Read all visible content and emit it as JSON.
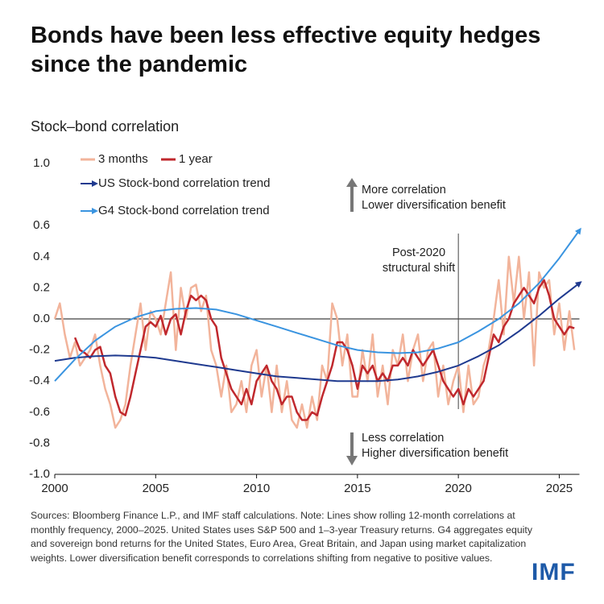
{
  "chart_data": {
    "type": "line",
    "title": "Bonds have been less effective equity hedges since the pandemic",
    "subtitle": "Stock–bond correlation",
    "xlim": [
      2000,
      2026
    ],
    "xticks": [
      2000,
      2005,
      2010,
      2015,
      2020,
      2025
    ],
    "ylim": [
      -1,
      1
    ],
    "yticks": [
      {
        "value": 1,
        "label": "1.0"
      },
      {
        "value": 0.6,
        "label": "0.6"
      },
      {
        "value": 0.4,
        "label": "0.4"
      },
      {
        "value": 0.2,
        "label": "0.2"
      },
      {
        "value": 0,
        "label": "0.0"
      },
      {
        "value": -0.2,
        "label": "-0.2"
      },
      {
        "value": -0.4,
        "label": "-0.4"
      },
      {
        "value": -0.6,
        "label": "-0.6"
      },
      {
        "value": -0.8,
        "label": "-0.8"
      },
      {
        "value": -1,
        "label": "-1.0"
      }
    ],
    "vline": 2020,
    "annotations": [
      {
        "lines": [
          "More correlation",
          "Lower diversification benefit"
        ]
      },
      {
        "lines": [
          "Less correlation",
          "Higher diversification benefit"
        ]
      },
      {
        "lines": [
          "Post-2020",
          "structural shift"
        ]
      }
    ],
    "x": [
      2000,
      2000.25,
      2000.5,
      2000.75,
      2001,
      2001.25,
      2001.5,
      2001.75,
      2002,
      2002.25,
      2002.5,
      2002.75,
      2003,
      2003.25,
      2003.5,
      2003.75,
      2004,
      2004.25,
      2004.5,
      2004.75,
      2005,
      2005.25,
      2005.5,
      2005.75,
      2006,
      2006.25,
      2006.5,
      2006.75,
      2007,
      2007.25,
      2007.5,
      2007.75,
      2008,
      2008.25,
      2008.5,
      2008.75,
      2009,
      2009.25,
      2009.5,
      2009.75,
      2010,
      2010.25,
      2010.5,
      2010.75,
      2011,
      2011.25,
      2011.5,
      2011.75,
      2012,
      2012.25,
      2012.5,
      2012.75,
      2013,
      2013.25,
      2013.5,
      2013.75,
      2014,
      2014.25,
      2014.5,
      2014.75,
      2015,
      2015.25,
      2015.5,
      2015.75,
      2016,
      2016.25,
      2016.5,
      2016.75,
      2017,
      2017.25,
      2017.5,
      2017.75,
      2018,
      2018.25,
      2018.5,
      2018.75,
      2019,
      2019.25,
      2019.5,
      2019.75,
      2020,
      2020.25,
      2020.5,
      2020.75,
      2021,
      2021.25,
      2021.5,
      2021.75,
      2022,
      2022.25,
      2022.5,
      2022.75,
      2023,
      2023.25,
      2023.5,
      2023.75,
      2024,
      2024.25,
      2024.5,
      2024.75,
      2025,
      2025.25,
      2025.5,
      2025.75
    ],
    "series": [
      {
        "name": "3 months",
        "color": "#f2b49b",
        "width": 2.5,
        "values": [
          0.0,
          0.1,
          -0.1,
          -0.25,
          -0.15,
          -0.3,
          -0.25,
          -0.2,
          -0.1,
          -0.3,
          -0.45,
          -0.55,
          -0.7,
          -0.65,
          -0.55,
          -0.3,
          -0.1,
          0.1,
          -0.2,
          0.05,
          0.0,
          -0.1,
          0.1,
          0.3,
          -0.2,
          0.2,
          0.0,
          0.2,
          0.22,
          0.05,
          0.15,
          -0.2,
          -0.3,
          -0.5,
          -0.3,
          -0.6,
          -0.55,
          -0.4,
          -0.6,
          -0.3,
          -0.2,
          -0.5,
          -0.3,
          -0.6,
          -0.3,
          -0.6,
          -0.4,
          -0.65,
          -0.7,
          -0.55,
          -0.7,
          -0.5,
          -0.65,
          -0.3,
          -0.4,
          0.1,
          0.0,
          -0.3,
          -0.1,
          -0.5,
          -0.5,
          -0.2,
          -0.4,
          -0.1,
          -0.5,
          -0.3,
          -0.55,
          -0.2,
          -0.3,
          -0.1,
          -0.4,
          -0.2,
          -0.1,
          -0.4,
          -0.2,
          -0.15,
          -0.5,
          -0.3,
          -0.55,
          -0.4,
          -0.3,
          -0.6,
          -0.3,
          -0.55,
          -0.5,
          -0.3,
          -0.2,
          0.0,
          0.25,
          -0.1,
          0.4,
          0.1,
          0.4,
          0.0,
          0.3,
          -0.3,
          0.3,
          0.2,
          0.25,
          -0.1,
          0.1,
          -0.2,
          0.05,
          -0.2
        ]
      },
      {
        "name": "1 year",
        "color": "#c0282d",
        "width": 2.5,
        "values": [
          null,
          null,
          null,
          null,
          -0.12,
          -0.2,
          -0.22,
          -0.25,
          -0.2,
          -0.18,
          -0.3,
          -0.35,
          -0.5,
          -0.6,
          -0.62,
          -0.5,
          -0.35,
          -0.2,
          -0.05,
          -0.02,
          -0.05,
          0.02,
          -0.1,
          0.0,
          0.03,
          -0.1,
          0.05,
          0.15,
          0.12,
          0.15,
          0.12,
          0.0,
          -0.05,
          -0.25,
          -0.35,
          -0.45,
          -0.5,
          -0.55,
          -0.45,
          -0.55,
          -0.4,
          -0.35,
          -0.3,
          -0.4,
          -0.45,
          -0.55,
          -0.5,
          -0.5,
          -0.6,
          -0.65,
          -0.65,
          -0.6,
          -0.62,
          -0.5,
          -0.4,
          -0.3,
          -0.15,
          -0.15,
          -0.2,
          -0.3,
          -0.45,
          -0.3,
          -0.35,
          -0.3,
          -0.4,
          -0.35,
          -0.4,
          -0.3,
          -0.3,
          -0.25,
          -0.3,
          -0.2,
          -0.25,
          -0.3,
          -0.25,
          -0.2,
          -0.3,
          -0.4,
          -0.45,
          -0.5,
          -0.45,
          -0.55,
          -0.45,
          -0.5,
          -0.45,
          -0.4,
          -0.25,
          -0.1,
          -0.15,
          -0.05,
          0.0,
          0.1,
          0.15,
          0.2,
          0.15,
          0.1,
          0.2,
          0.25,
          0.15,
          0.0,
          -0.05,
          -0.1,
          -0.05,
          -0.06
        ]
      },
      {
        "name": "US Stock-bond correlation trend",
        "color": "#1f3a8f",
        "width": 2,
        "arrow": true,
        "x": [
          2000,
          2001,
          2002,
          2003,
          2004,
          2005,
          2006,
          2007,
          2008,
          2009,
          2010,
          2011,
          2012,
          2013,
          2014,
          2015,
          2016,
          2017,
          2018,
          2019,
          2020,
          2021,
          2022,
          2023,
          2024,
          2025,
          2026
        ],
        "values": [
          -0.27,
          -0.25,
          -0.24,
          -0.235,
          -0.24,
          -0.25,
          -0.27,
          -0.29,
          -0.31,
          -0.33,
          -0.35,
          -0.37,
          -0.38,
          -0.39,
          -0.4,
          -0.4,
          -0.4,
          -0.39,
          -0.37,
          -0.34,
          -0.3,
          -0.24,
          -0.17,
          -0.08,
          0.02,
          0.13,
          0.23
        ]
      },
      {
        "name": "G4 Stock-bond correlation trend",
        "color": "#3a94e0",
        "width": 2,
        "arrow": true,
        "x": [
          2000,
          2001,
          2002,
          2003,
          2004,
          2005,
          2006,
          2007,
          2008,
          2009,
          2010,
          2011,
          2012,
          2013,
          2014,
          2015,
          2016,
          2017,
          2018,
          2019,
          2020,
          2021,
          2022,
          2023,
          2024,
          2025,
          2026
        ],
        "values": [
          -0.4,
          -0.26,
          -0.14,
          -0.05,
          0.01,
          0.05,
          0.065,
          0.07,
          0.06,
          0.03,
          -0.01,
          -0.05,
          -0.09,
          -0.13,
          -0.17,
          -0.2,
          -0.215,
          -0.22,
          -0.215,
          -0.19,
          -0.15,
          -0.08,
          0.0,
          0.1,
          0.23,
          0.39,
          0.57
        ]
      }
    ],
    "note": "Sources: Bloomberg Finance L.P., and IMF staff calculations. Note: Lines show rolling 12-month correlations at monthly frequency, 2000–2025. United States uses S&P 500 and 1–3-year Treasury returns. G4 aggregates equity and sovereign bond returns for the United States, Euro Area, Great Britain, and Japan using market capitalization weights. Lower diversification benefit corresponds to correlations shifting from negative to positive values.",
    "logo": "IMF"
  }
}
